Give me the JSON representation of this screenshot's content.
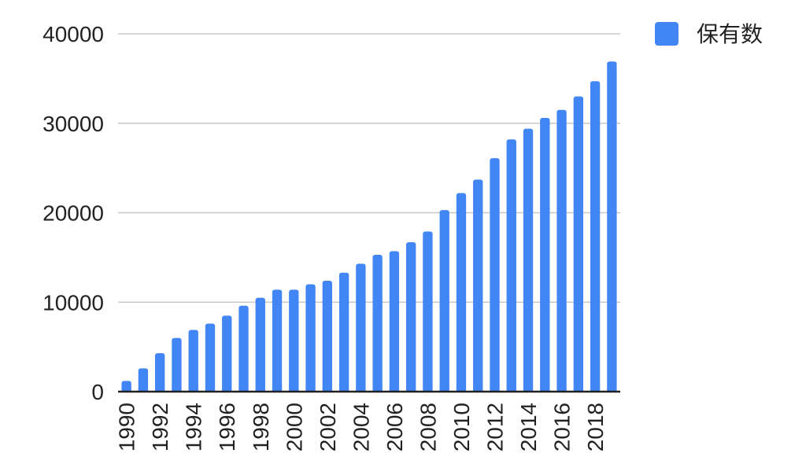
{
  "chart_data": {
    "type": "bar",
    "title": "",
    "xlabel": "",
    "ylabel": "",
    "x": [
      1990,
      1991,
      1992,
      1993,
      1994,
      1995,
      1996,
      1997,
      1998,
      1999,
      2000,
      2001,
      2002,
      2003,
      2004,
      2005,
      2006,
      2007,
      2008,
      2009,
      2010,
      2011,
      2012,
      2013,
      2014,
      2015,
      2016,
      2017,
      2018,
      2019
    ],
    "x_tick_labels": [
      "1990",
      "1992",
      "1994",
      "1996",
      "1998",
      "2000",
      "2002",
      "2004",
      "2006",
      "2008",
      "2010",
      "2012",
      "2014",
      "2016",
      "2018"
    ],
    "series": [
      {
        "name": "保有数",
        "color": "#4285f4",
        "values": [
          1200,
          2600,
          4300,
          6000,
          6900,
          7600,
          8500,
          9600,
          10500,
          11400,
          11400,
          12000,
          12400,
          13300,
          14300,
          15300,
          15700,
          16700,
          17900,
          20300,
          22200,
          23700,
          26100,
          28200,
          29400,
          30600,
          31500,
          33000,
          34700,
          36900
        ]
      }
    ],
    "ylim": [
      0,
      40000
    ],
    "y_ticks": [
      0,
      10000,
      20000,
      30000,
      40000
    ],
    "y_tick_labels": [
      "0",
      "10000",
      "20000",
      "30000",
      "40000"
    ],
    "grid": true,
    "legend_position": "top-right"
  },
  "colors": {
    "bar": "#4285f4",
    "grid": "#c8c8c8",
    "axis": "#222222",
    "text": "#222222"
  }
}
